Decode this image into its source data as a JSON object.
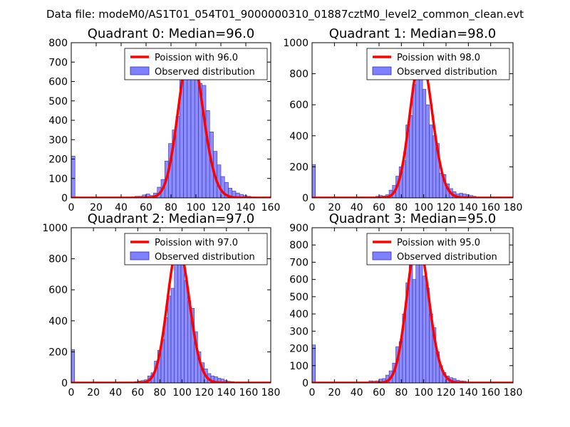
{
  "figure": {
    "suptitle": "Data file: modeM0/AS1T01_054T01_9000000310_01887cztM0_level2_common_clean.evt"
  },
  "colors": {
    "bar_fill": "#8080ff",
    "bar_edge": "#3333aa",
    "curve": "#ff0000",
    "axes": "#000000",
    "background": "#ffffff"
  },
  "chart_data": [
    {
      "type": "bar",
      "title": "Quadrant 0: Median=96.0",
      "xlim": [
        0,
        160
      ],
      "ylim": [
        0,
        800
      ],
      "xticks": [
        0,
        20,
        40,
        60,
        80,
        100,
        120,
        140,
        160
      ],
      "yticks": [
        0,
        100,
        200,
        300,
        400,
        500,
        600,
        700,
        800
      ],
      "bin_width": 3,
      "legend": {
        "position": "top-right",
        "curve_label": "Poission with 96.0",
        "bar_label": "Observed distribution"
      },
      "poisson_mean": 96.0,
      "curve_peak": 760,
      "bars": [
        {
          "x": 0,
          "y": 215
        },
        {
          "x": 48,
          "y": 5
        },
        {
          "x": 51,
          "y": 8
        },
        {
          "x": 54,
          "y": 8
        },
        {
          "x": 57,
          "y": 15
        },
        {
          "x": 60,
          "y": 20
        },
        {
          "x": 63,
          "y": 12
        },
        {
          "x": 66,
          "y": 25
        },
        {
          "x": 69,
          "y": 55
        },
        {
          "x": 72,
          "y": 95
        },
        {
          "x": 75,
          "y": 190
        },
        {
          "x": 78,
          "y": 280
        },
        {
          "x": 81,
          "y": 350
        },
        {
          "x": 84,
          "y": 420
        },
        {
          "x": 87,
          "y": 760
        },
        {
          "x": 90,
          "y": 620
        },
        {
          "x": 93,
          "y": 700
        },
        {
          "x": 96,
          "y": 760
        },
        {
          "x": 99,
          "y": 700
        },
        {
          "x": 102,
          "y": 590
        },
        {
          "x": 105,
          "y": 580
        },
        {
          "x": 108,
          "y": 450
        },
        {
          "x": 111,
          "y": 340
        },
        {
          "x": 114,
          "y": 240
        },
        {
          "x": 117,
          "y": 170
        },
        {
          "x": 120,
          "y": 110
        },
        {
          "x": 123,
          "y": 80
        },
        {
          "x": 126,
          "y": 50
        },
        {
          "x": 129,
          "y": 35
        },
        {
          "x": 132,
          "y": 25
        },
        {
          "x": 135,
          "y": 18
        },
        {
          "x": 138,
          "y": 12
        },
        {
          "x": 141,
          "y": 8
        },
        {
          "x": 144,
          "y": 5
        }
      ]
    },
    {
      "type": "bar",
      "title": "Quadrant 1: Median=98.0",
      "xlim": [
        0,
        180
      ],
      "ylim": [
        0,
        1000
      ],
      "xticks": [
        0,
        20,
        40,
        60,
        80,
        100,
        120,
        140,
        160,
        180
      ],
      "yticks": [
        0,
        200,
        400,
        600,
        800,
        1000
      ],
      "bin_width": 3,
      "legend": {
        "position": "top-right",
        "curve_label": "Poission with 98.0",
        "bar_label": "Observed distribution"
      },
      "poisson_mean": 98.0,
      "curve_peak": 910,
      "bars": [
        {
          "x": 0,
          "y": 215
        },
        {
          "x": 57,
          "y": 10
        },
        {
          "x": 60,
          "y": 15
        },
        {
          "x": 63,
          "y": 12
        },
        {
          "x": 66,
          "y": 20
        },
        {
          "x": 69,
          "y": 50
        },
        {
          "x": 72,
          "y": 80
        },
        {
          "x": 75,
          "y": 140
        },
        {
          "x": 78,
          "y": 200
        },
        {
          "x": 81,
          "y": 240
        },
        {
          "x": 84,
          "y": 470
        },
        {
          "x": 87,
          "y": 530
        },
        {
          "x": 90,
          "y": 730
        },
        {
          "x": 93,
          "y": 910
        },
        {
          "x": 96,
          "y": 780
        },
        {
          "x": 99,
          "y": 700
        },
        {
          "x": 102,
          "y": 600
        },
        {
          "x": 105,
          "y": 470
        },
        {
          "x": 108,
          "y": 400
        },
        {
          "x": 111,
          "y": 350
        },
        {
          "x": 114,
          "y": 160
        },
        {
          "x": 117,
          "y": 150
        },
        {
          "x": 120,
          "y": 90
        },
        {
          "x": 123,
          "y": 60
        },
        {
          "x": 126,
          "y": 40
        },
        {
          "x": 129,
          "y": 25
        },
        {
          "x": 132,
          "y": 30
        },
        {
          "x": 135,
          "y": 25
        },
        {
          "x": 138,
          "y": 20
        },
        {
          "x": 141,
          "y": 15
        },
        {
          "x": 144,
          "y": 10
        },
        {
          "x": 147,
          "y": 5
        }
      ]
    },
    {
      "type": "bar",
      "title": "Quadrant 2: Median=97.0",
      "xlim": [
        0,
        180
      ],
      "ylim": [
        0,
        1000
      ],
      "xticks": [
        0,
        20,
        40,
        60,
        80,
        100,
        120,
        140,
        160,
        180
      ],
      "yticks": [
        0,
        200,
        400,
        600,
        800,
        1000
      ],
      "bin_width": 3,
      "legend": {
        "position": "top-right",
        "curve_label": "Poission with 97.0",
        "bar_label": "Observed distribution"
      },
      "poisson_mean": 97.0,
      "curve_peak": 880,
      "bars": [
        {
          "x": 0,
          "y": 215
        },
        {
          "x": 57,
          "y": 8
        },
        {
          "x": 60,
          "y": 12
        },
        {
          "x": 63,
          "y": 15
        },
        {
          "x": 66,
          "y": 20
        },
        {
          "x": 69,
          "y": 45
        },
        {
          "x": 72,
          "y": 65
        },
        {
          "x": 75,
          "y": 140
        },
        {
          "x": 78,
          "y": 210
        },
        {
          "x": 81,
          "y": 280
        },
        {
          "x": 84,
          "y": 420
        },
        {
          "x": 87,
          "y": 560
        },
        {
          "x": 90,
          "y": 610
        },
        {
          "x": 93,
          "y": 880
        },
        {
          "x": 96,
          "y": 830
        },
        {
          "x": 99,
          "y": 800
        },
        {
          "x": 102,
          "y": 660
        },
        {
          "x": 105,
          "y": 530
        },
        {
          "x": 108,
          "y": 480
        },
        {
          "x": 111,
          "y": 330
        },
        {
          "x": 114,
          "y": 200
        },
        {
          "x": 117,
          "y": 130
        },
        {
          "x": 120,
          "y": 90
        },
        {
          "x": 123,
          "y": 60
        },
        {
          "x": 126,
          "y": 45
        },
        {
          "x": 129,
          "y": 40
        },
        {
          "x": 132,
          "y": 30
        },
        {
          "x": 135,
          "y": 25
        },
        {
          "x": 138,
          "y": 15
        },
        {
          "x": 141,
          "y": 10
        },
        {
          "x": 144,
          "y": 8
        },
        {
          "x": 147,
          "y": 5
        }
      ]
    },
    {
      "type": "bar",
      "title": "Quadrant 3: Median=95.0",
      "xlim": [
        0,
        180
      ],
      "ylim": [
        0,
        900
      ],
      "xticks": [
        0,
        20,
        40,
        60,
        80,
        100,
        120,
        140,
        160,
        180
      ],
      "yticks": [
        0,
        100,
        200,
        300,
        400,
        500,
        600,
        700,
        800,
        900
      ],
      "bin_width": 3,
      "legend": {
        "position": "top-right",
        "curve_label": "Poission with 95.0",
        "bar_label": "Observed distribution"
      },
      "poisson_mean": 95.0,
      "curve_peak": 830,
      "bars": [
        {
          "x": 0,
          "y": 220
        },
        {
          "x": 51,
          "y": 12
        },
        {
          "x": 54,
          "y": 10
        },
        {
          "x": 57,
          "y": 12
        },
        {
          "x": 60,
          "y": 22
        },
        {
          "x": 63,
          "y": 25
        },
        {
          "x": 66,
          "y": 45
        },
        {
          "x": 69,
          "y": 70
        },
        {
          "x": 72,
          "y": 115
        },
        {
          "x": 75,
          "y": 210
        },
        {
          "x": 78,
          "y": 240
        },
        {
          "x": 81,
          "y": 400
        },
        {
          "x": 84,
          "y": 580
        },
        {
          "x": 87,
          "y": 740
        },
        {
          "x": 90,
          "y": 600
        },
        {
          "x": 93,
          "y": 780
        },
        {
          "x": 96,
          "y": 830
        },
        {
          "x": 99,
          "y": 620
        },
        {
          "x": 102,
          "y": 550
        },
        {
          "x": 105,
          "y": 400
        },
        {
          "x": 108,
          "y": 320
        },
        {
          "x": 111,
          "y": 180
        },
        {
          "x": 114,
          "y": 100
        },
        {
          "x": 117,
          "y": 60
        },
        {
          "x": 120,
          "y": 40
        },
        {
          "x": 123,
          "y": 30
        },
        {
          "x": 126,
          "y": 25
        },
        {
          "x": 129,
          "y": 15
        },
        {
          "x": 132,
          "y": 12
        },
        {
          "x": 135,
          "y": 10
        },
        {
          "x": 138,
          "y": 5
        }
      ]
    }
  ]
}
